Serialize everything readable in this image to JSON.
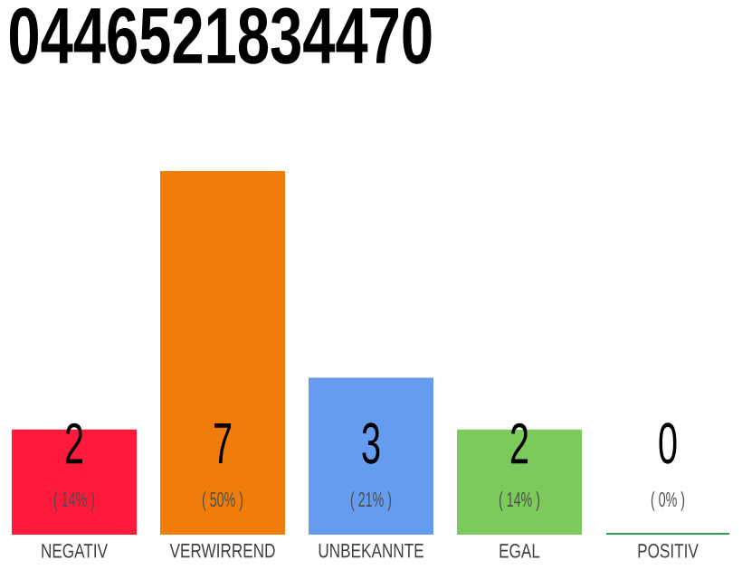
{
  "chart_data": {
    "type": "bar",
    "title": "0446521834470",
    "categories": [
      "NEGATIV",
      "VERWIRREND",
      "UNBEKANNTE",
      "EGAL",
      "POSITIV"
    ],
    "values": [
      2,
      7,
      3,
      2,
      0
    ],
    "colors": [
      "#ff1a3c",
      "#f07d0a",
      "#659cef",
      "#7cc95c",
      "#2ea04e"
    ],
    "data_labels": true,
    "annotations": [
      "( 14% )",
      "( 50% )",
      "( 21% )",
      "( 14% )",
      "( 0% )"
    ],
    "ylim": [
      0,
      7
    ],
    "tick_labels": "x"
  }
}
